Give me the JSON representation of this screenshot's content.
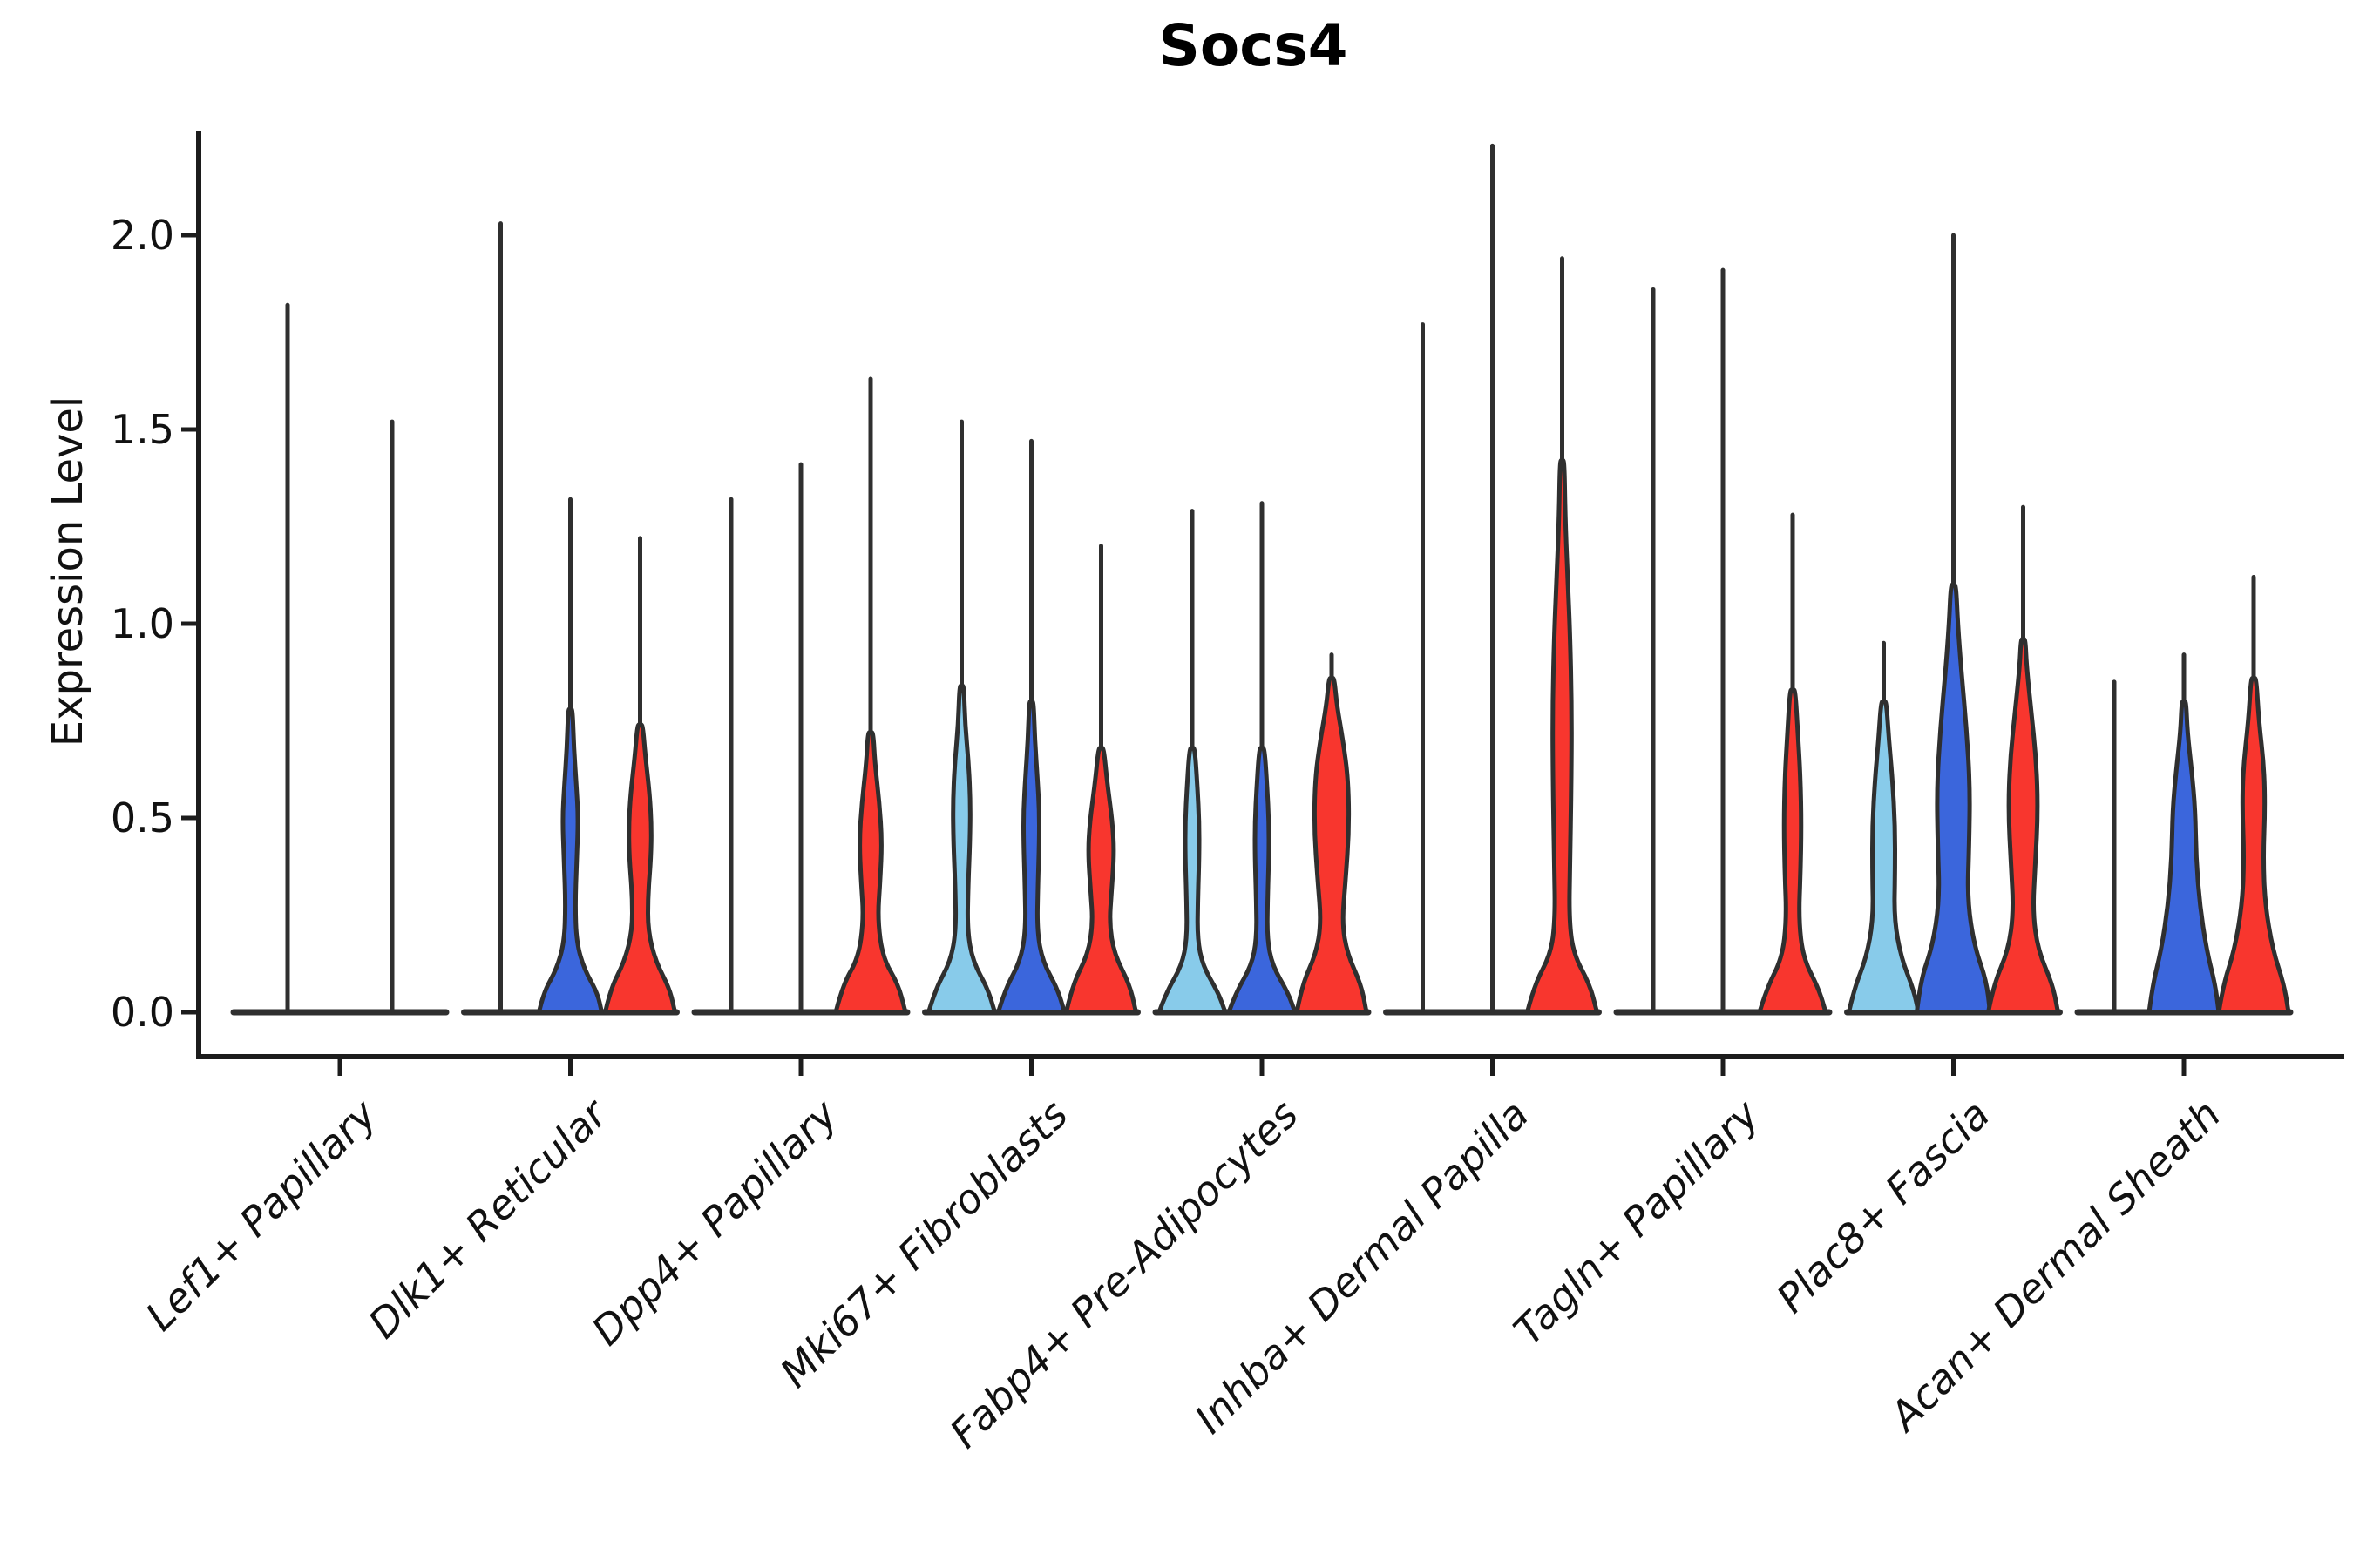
{
  "page": {
    "title": "Socs4"
  },
  "chart_data": {
    "type": "violin",
    "title": "Socs4",
    "ylabel": "Expression Level",
    "xlabel": "",
    "ylim": [
      -0.11,
      2.27
    ],
    "grid": false,
    "legend_position": "none",
    "ytick_labels": [
      "0.0",
      "0.5",
      "1.0",
      "1.5",
      "2.0"
    ],
    "ytick_values": [
      0.0,
      0.5,
      1.0,
      1.5,
      2.0
    ],
    "categories": [
      "Lef1+ Papillary",
      "Dlk1+ Reticular",
      "Dpp4+ Papillary",
      "Mki67+ Fibroblasts",
      "Fabp4+ Pre-Adipocytes",
      "Inhba+ Dermal Papilla",
      "Tagln+ Papillary",
      "Plac8+ Fascia",
      "Acan+ Dermal Sheath"
    ],
    "conditions": [
      {
        "name": "condition-1",
        "color": "#88CBEA"
      },
      {
        "name": "condition-2",
        "color": "#3B66DC"
      },
      {
        "name": "condition-3",
        "color": "#F8362E"
      }
    ],
    "outline_color": "#2F2F2F",
    "axis_color": "#1C1C1C",
    "groups": [
      {
        "category": "Lef1+ Papillary",
        "violins": [
          {
            "offset": -60,
            "condition": 0,
            "color": null,
            "max": 1.82,
            "body": null
          },
          {
            "offset": 60,
            "condition": 1,
            "color": null,
            "max": 1.52,
            "body": null
          }
        ]
      },
      {
        "category": "Dlk1+ Reticular",
        "violins": [
          {
            "offset": -80,
            "condition": 0,
            "color": null,
            "max": 2.03,
            "body": null
          },
          {
            "offset": 0,
            "condition": 1,
            "color": "#3B66DC",
            "max": 1.32,
            "body": [
              [
                0,
                36
              ],
              [
                0.05,
                31
              ],
              [
                0.11,
                16
              ],
              [
                0.18,
                7
              ],
              [
                0.28,
                5.5
              ],
              [
                0.4,
                7.5
              ],
              [
                0.5,
                9
              ],
              [
                0.58,
                7
              ],
              [
                0.68,
                4
              ],
              [
                0.78,
                2.5
              ]
            ]
          },
          {
            "offset": 80,
            "condition": 2,
            "color": "#F8362E",
            "max": 1.22,
            "body": [
              [
                0,
                40
              ],
              [
                0.06,
                34
              ],
              [
                0.13,
                18
              ],
              [
                0.21,
                9
              ],
              [
                0.3,
                9
              ],
              [
                0.4,
                12.5
              ],
              [
                0.48,
                13
              ],
              [
                0.56,
                11
              ],
              [
                0.66,
                6
              ],
              [
                0.74,
                3
              ]
            ]
          }
        ]
      },
      {
        "category": "Dpp4+ Papillary",
        "violins": [
          {
            "offset": -80,
            "condition": 0,
            "color": null,
            "max": 1.32,
            "body": null
          },
          {
            "offset": 0,
            "condition": 1,
            "color": null,
            "max": 1.41,
            "body": null
          },
          {
            "offset": 80,
            "condition": 2,
            "color": "#F8362E",
            "max": 1.63,
            "body": [
              [
                0,
                40
              ],
              [
                0.07,
                32
              ],
              [
                0.14,
                14
              ],
              [
                0.24,
                8
              ],
              [
                0.34,
                11
              ],
              [
                0.44,
                13
              ],
              [
                0.54,
                10
              ],
              [
                0.64,
                5
              ],
              [
                0.72,
                3
              ]
            ]
          }
        ]
      },
      {
        "category": "Mki67+ Fibroblasts",
        "violins": [
          {
            "offset": -80,
            "condition": 0,
            "color": "#88CBEA",
            "max": 1.52,
            "body": [
              [
                0,
                38
              ],
              [
                0.06,
                30
              ],
              [
                0.13,
                13
              ],
              [
                0.21,
                6.5
              ],
              [
                0.33,
                7.5
              ],
              [
                0.44,
                9.5
              ],
              [
                0.54,
                10
              ],
              [
                0.64,
                8
              ],
              [
                0.74,
                4
              ],
              [
                0.84,
                2.5
              ]
            ]
          },
          {
            "offset": 0,
            "condition": 1,
            "color": "#3B66DC",
            "max": 1.47,
            "body": [
              [
                0,
                38
              ],
              [
                0.06,
                30
              ],
              [
                0.13,
                13
              ],
              [
                0.21,
                6.5
              ],
              [
                0.33,
                7.5
              ],
              [
                0.44,
                9
              ],
              [
                0.52,
                9
              ],
              [
                0.6,
                7
              ],
              [
                0.7,
                4
              ],
              [
                0.8,
                2.5
              ]
            ]
          },
          {
            "offset": 80,
            "condition": 2,
            "color": "#F8362E",
            "max": 1.2,
            "body": [
              [
                0,
                40
              ],
              [
                0.07,
                33
              ],
              [
                0.15,
                15
              ],
              [
                0.23,
                9.5
              ],
              [
                0.31,
                12
              ],
              [
                0.41,
                15
              ],
              [
                0.49,
                13
              ],
              [
                0.59,
                7
              ],
              [
                0.68,
                3
              ]
            ]
          }
        ]
      },
      {
        "category": "Fabp4+ Pre-Adipocytes",
        "violins": [
          {
            "offset": -80,
            "condition": 0,
            "color": "#88CBEA",
            "max": 1.29,
            "body": [
              [
                0,
                38
              ],
              [
                0.05,
                30
              ],
              [
                0.12,
                12
              ],
              [
                0.19,
                6
              ],
              [
                0.29,
                6.5
              ],
              [
                0.4,
                8
              ],
              [
                0.49,
                8
              ],
              [
                0.58,
                6
              ],
              [
                0.68,
                3
              ]
            ]
          },
          {
            "offset": 0,
            "condition": 1,
            "color": "#3B66DC",
            "max": 1.31,
            "body": [
              [
                0,
                38
              ],
              [
                0.05,
                30
              ],
              [
                0.12,
                12
              ],
              [
                0.19,
                6
              ],
              [
                0.29,
                6.5
              ],
              [
                0.4,
                8
              ],
              [
                0.49,
                8
              ],
              [
                0.58,
                6
              ],
              [
                0.68,
                3
              ]
            ]
          },
          {
            "offset": 80,
            "condition": 2,
            "color": "#F8362E",
            "max": 0.92,
            "body": [
              [
                0,
                40
              ],
              [
                0.07,
                34
              ],
              [
                0.15,
                18
              ],
              [
                0.23,
                12
              ],
              [
                0.34,
                16
              ],
              [
                0.47,
                20
              ],
              [
                0.6,
                19
              ],
              [
                0.7,
                13
              ],
              [
                0.79,
                6
              ],
              [
                0.86,
                3
              ]
            ]
          }
        ]
      },
      {
        "category": "Inhba+ Dermal Papilla",
        "violins": [
          {
            "offset": -80,
            "condition": 0,
            "color": null,
            "max": 1.77,
            "body": null
          },
          {
            "offset": 0,
            "condition": 1,
            "color": null,
            "max": 2.23,
            "body": null
          },
          {
            "offset": 80,
            "condition": 2,
            "color": "#F8362E",
            "max": 1.94,
            "body": [
              [
                0,
                40
              ],
              [
                0.07,
                32
              ],
              [
                0.15,
                13
              ],
              [
                0.24,
                8
              ],
              [
                0.38,
                9
              ],
              [
                0.58,
                10.5
              ],
              [
                0.78,
                11
              ],
              [
                0.98,
                9
              ],
              [
                1.13,
                6
              ],
              [
                1.28,
                3.5
              ],
              [
                1.42,
                2.5
              ]
            ]
          }
        ]
      },
      {
        "category": "Tagln+ Papillary",
        "violins": [
          {
            "offset": -80,
            "condition": 0,
            "color": null,
            "max": 1.86,
            "body": null
          },
          {
            "offset": 0,
            "condition": 1,
            "color": null,
            "max": 1.91,
            "body": null
          },
          {
            "offset": 80,
            "condition": 2,
            "color": "#F8362E",
            "max": 1.28,
            "body": [
              [
                0,
                38
              ],
              [
                0.06,
                30
              ],
              [
                0.14,
                12
              ],
              [
                0.24,
                7
              ],
              [
                0.36,
                9
              ],
              [
                0.48,
                10
              ],
              [
                0.6,
                9
              ],
              [
                0.72,
                6
              ],
              [
                0.83,
                3
              ]
            ]
          }
        ]
      },
      {
        "category": "Plac8+ Fascia",
        "violins": [
          {
            "offset": -80,
            "condition": 0,
            "color": "#88CBEA",
            "max": 0.95,
            "body": [
              [
                0,
                40
              ],
              [
                0.06,
                34
              ],
              [
                0.14,
                20
              ],
              [
                0.24,
                12
              ],
              [
                0.36,
                13
              ],
              [
                0.48,
                13
              ],
              [
                0.6,
                10
              ],
              [
                0.7,
                6
              ],
              [
                0.8,
                3
              ]
            ]
          },
          {
            "offset": 0,
            "condition": 1,
            "color": "#3B66DC",
            "max": 2.0,
            "body": [
              [
                0,
                42
              ],
              [
                0.08,
                38
              ],
              [
                0.17,
                24
              ],
              [
                0.29,
                16
              ],
              [
                0.43,
                18
              ],
              [
                0.58,
                19
              ],
              [
                0.73,
                15
              ],
              [
                0.88,
                9
              ],
              [
                1.0,
                5
              ],
              [
                1.1,
                3
              ]
            ]
          },
          {
            "offset": 80,
            "condition": 2,
            "color": "#F8362E",
            "max": 1.3,
            "body": [
              [
                0,
                40
              ],
              [
                0.07,
                34
              ],
              [
                0.16,
                17
              ],
              [
                0.26,
                11
              ],
              [
                0.38,
                14
              ],
              [
                0.52,
                17
              ],
              [
                0.65,
                15
              ],
              [
                0.78,
                9
              ],
              [
                0.89,
                4
              ],
              [
                0.96,
                2.5
              ]
            ]
          }
        ]
      },
      {
        "category": "Acan+ Dermal Sheath",
        "violins": [
          {
            "offset": -80,
            "condition": 0,
            "color": null,
            "max": 0.85,
            "body": null
          },
          {
            "offset": 0,
            "condition": 1,
            "color": "#3B66DC",
            "max": 0.92,
            "body": [
              [
                0,
                40
              ],
              [
                0.07,
                36
              ],
              [
                0.16,
                26
              ],
              [
                0.28,
                18
              ],
              [
                0.4,
                14
              ],
              [
                0.52,
                13
              ],
              [
                0.62,
                9
              ],
              [
                0.72,
                4
              ],
              [
                0.8,
                2.5
              ]
            ]
          },
          {
            "offset": 80,
            "condition": 2,
            "color": "#F8362E",
            "max": 1.12,
            "body": [
              [
                0,
                40
              ],
              [
                0.07,
                35
              ],
              [
                0.16,
                22
              ],
              [
                0.28,
                13
              ],
              [
                0.4,
                11
              ],
              [
                0.52,
                13
              ],
              [
                0.63,
                12
              ],
              [
                0.75,
                6
              ],
              [
                0.86,
                3
              ]
            ]
          }
        ]
      }
    ]
  }
}
